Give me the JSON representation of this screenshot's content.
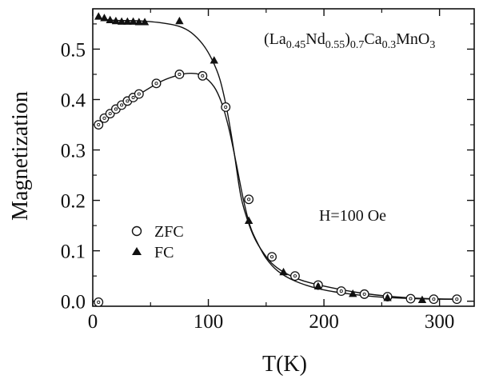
{
  "chart_data": {
    "type": "scatter",
    "xlabel": "T(K)",
    "ylabel": "Magnetization",
    "xlim": [
      0,
      330
    ],
    "ylim": [
      -0.01,
      0.58
    ],
    "xticks": [
      0,
      100,
      200,
      300
    ],
    "yticks": [
      0.0,
      0.1,
      0.2,
      0.3,
      0.4,
      0.5
    ],
    "xtick_labels": [
      "0",
      "100",
      "200",
      "300"
    ],
    "ytick_labels": [
      "0.0",
      "0.1",
      "0.2",
      "0.3",
      "0.4",
      "0.5"
    ],
    "grid": false,
    "legend": "left-middle",
    "annotations": {
      "formula": {
        "open": "(La",
        "s1": "0.45",
        "nd": "Nd",
        "s2": "0.55",
        "close": ")",
        "s3": "0.7",
        "ca": "Ca",
        "s4": "0.3",
        "mno": "MnO",
        "s5": "3"
      },
      "field": "H=100 Oe"
    },
    "series": [
      {
        "name": "ZFC",
        "marker": "open-circle",
        "x": [
          5,
          5,
          10,
          15,
          20,
          25,
          30,
          35,
          40,
          55,
          75,
          95,
          115,
          135,
          155,
          175,
          195,
          215,
          235,
          255,
          275,
          295,
          315
        ],
        "y": [
          -0.002,
          0.35,
          0.363,
          0.372,
          0.381,
          0.389,
          0.397,
          0.404,
          0.411,
          0.432,
          0.45,
          0.447,
          0.385,
          0.202,
          0.088,
          0.05,
          0.032,
          0.02,
          0.014,
          0.009,
          0.005,
          0.004,
          0.004
        ]
      },
      {
        "name": "FC",
        "marker": "filled-triangle",
        "x": [
          5,
          10,
          15,
          20,
          25,
          30,
          35,
          40,
          45,
          75,
          105,
          135,
          165,
          195,
          225,
          255,
          285
        ],
        "y": [
          0.565,
          0.562,
          0.558,
          0.556,
          0.555,
          0.555,
          0.555,
          0.554,
          0.554,
          0.556,
          0.478,
          0.16,
          0.058,
          0.03,
          0.015,
          0.007,
          0.003
        ]
      }
    ],
    "fit_curves": [
      {
        "for": "ZFC",
        "x": [
          5,
          20,
          40,
          60,
          75,
          85,
          95,
          105,
          112,
          118,
          124,
          130,
          136,
          142,
          150,
          160,
          175,
          195,
          220,
          250,
          280,
          315
        ],
        "y": [
          0.35,
          0.378,
          0.41,
          0.437,
          0.449,
          0.452,
          0.447,
          0.425,
          0.39,
          0.34,
          0.275,
          0.205,
          0.15,
          0.118,
          0.085,
          0.06,
          0.04,
          0.025,
          0.015,
          0.008,
          0.005,
          0.004
        ]
      },
      {
        "for": "FC",
        "x": [
          5,
          20,
          40,
          60,
          75,
          85,
          95,
          103,
          110,
          116,
          122,
          128,
          134,
          140,
          147,
          155,
          165,
          180,
          200,
          230,
          260,
          290,
          315
        ],
        "y": [
          0.56,
          0.557,
          0.556,
          0.552,
          0.545,
          0.533,
          0.51,
          0.48,
          0.44,
          0.38,
          0.3,
          0.21,
          0.16,
          0.125,
          0.098,
          0.075,
          0.058,
          0.042,
          0.03,
          0.017,
          0.009,
          0.005,
          0.004
        ]
      }
    ]
  }
}
